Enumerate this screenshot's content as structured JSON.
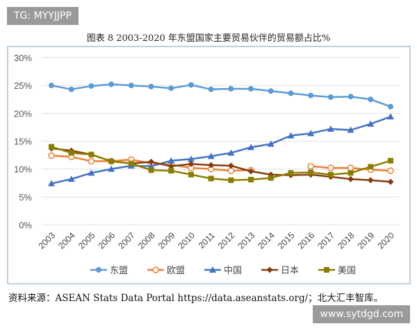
{
  "watermark_top": "TG: MYYJJPP",
  "watermark_bottom": "www.sytdgd.com",
  "source": "资料来源：ASEAN Stats Data Portal https://data.aseanstats.org/；北大汇丰智库。",
  "chart_data": {
    "type": "line",
    "title": "图表 8    2003-2020 年东盟国家主要贸易伙伴的贸易额占比%",
    "categories": [
      "2003",
      "2004",
      "2005",
      "2006",
      "2007",
      "2008",
      "2009",
      "2010",
      "2011",
      "2012",
      "2013",
      "2014",
      "2015",
      "2016",
      "2017",
      "2018",
      "2019",
      "2020"
    ],
    "ylim": [
      0,
      30
    ],
    "yticks": [
      "0%",
      "5%",
      "10%",
      "15%",
      "20%",
      "25%",
      "30%"
    ],
    "grid": true,
    "legend": "bottom",
    "series": [
      {
        "name": "东盟",
        "color": "#5b9bd5",
        "marker": "circle",
        "values": [
          25.0,
          24.3,
          24.9,
          25.2,
          25.0,
          24.8,
          24.5,
          25.1,
          24.3,
          24.4,
          24.4,
          24.0,
          23.6,
          23.2,
          22.9,
          23.0,
          22.5,
          21.2
        ]
      },
      {
        "name": "欧盟",
        "color": "#ed7d31",
        "marker": "open-circle",
        "values": [
          12.4,
          12.2,
          11.4,
          11.4,
          11.7,
          11.0,
          10.8,
          10.2,
          10.0,
          9.7,
          9.8,
          null,
          null,
          10.5,
          10.2,
          10.2,
          9.9,
          9.7
        ]
      },
      {
        "name": "中国",
        "color": "#4472c4",
        "marker": "triangle",
        "values": [
          7.4,
          8.2,
          9.3,
          10.0,
          10.6,
          10.5,
          11.5,
          11.8,
          12.3,
          12.9,
          13.9,
          14.5,
          16.0,
          16.4,
          17.2,
          17.0,
          18.1,
          19.4
        ]
      },
      {
        "name": "日本",
        "color": "#843c0c",
        "marker": "diamond",
        "values": [
          13.7,
          13.3,
          12.6,
          11.4,
          11.0,
          11.3,
          10.5,
          10.9,
          10.7,
          10.6,
          9.6,
          9.0,
          8.9,
          9.0,
          8.6,
          8.2,
          8.0,
          7.7
        ]
      },
      {
        "name": "美国",
        "color": "#8b7d00",
        "marker": "square",
        "values": [
          14.0,
          12.9,
          12.6,
          11.4,
          11.0,
          9.8,
          9.7,
          9.0,
          8.3,
          8.0,
          8.1,
          8.4,
          9.3,
          9.4,
          9.0,
          9.3,
          10.4,
          11.5
        ]
      }
    ]
  }
}
